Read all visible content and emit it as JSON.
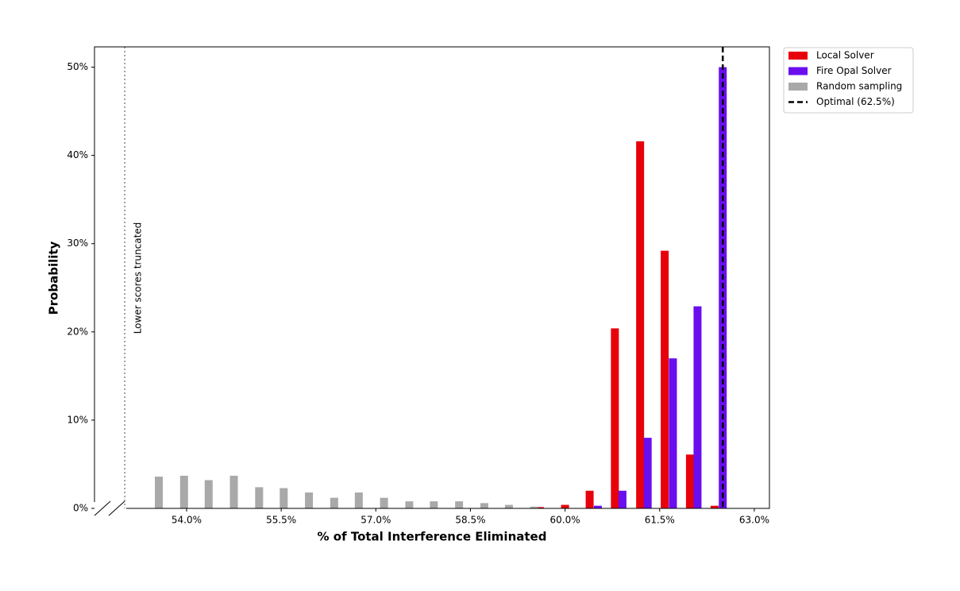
{
  "chart_data": {
    "type": "bar",
    "xlabel": "% of Total Interference Eliminated",
    "ylabel": "Probability",
    "xlim": [
      52.54,
      63.24
    ],
    "ylim": [
      0,
      52.3
    ],
    "xticks": [
      {
        "value": 54.0,
        "label": "54.0%"
      },
      {
        "value": 55.5,
        "label": "55.5%"
      },
      {
        "value": 57.0,
        "label": "57.0%"
      },
      {
        "value": 58.5,
        "label": "58.5%"
      },
      {
        "value": 60.0,
        "label": "60.0%"
      },
      {
        "value": 61.5,
        "label": "61.5%"
      },
      {
        "value": 63.0,
        "label": "63.0%"
      }
    ],
    "yticks": [
      {
        "value": 0,
        "label": "0%"
      },
      {
        "value": 10,
        "label": "10%"
      },
      {
        "value": 20,
        "label": "20%"
      },
      {
        "value": 30,
        "label": "30%"
      },
      {
        "value": 40,
        "label": "40%"
      },
      {
        "value": 50,
        "label": "50%"
      }
    ],
    "series": [
      {
        "name": "Local Solver",
        "color": "#e8000b",
        "x": [
          59.6,
          60.0,
          60.39,
          60.79,
          61.19,
          61.58,
          61.98,
          62.37
        ],
        "values": [
          0.15,
          0.4,
          2.0,
          20.4,
          41.6,
          29.2,
          6.1,
          0.3
        ]
      },
      {
        "name": "Fire Opal Solver",
        "color": "#6a0ef0",
        "x": [
          60.52,
          60.91,
          61.31,
          61.71,
          62.1,
          62.5
        ],
        "values": [
          0.3,
          2.0,
          8.0,
          17.0,
          22.9,
          50.0
        ]
      },
      {
        "name": "Random sampling",
        "color": "#a9a9a9",
        "x": [
          53.56,
          53.96,
          54.35,
          54.75,
          55.15,
          55.54,
          55.94,
          56.34,
          56.73,
          57.13,
          57.53,
          57.92,
          58.32,
          58.72,
          59.11,
          59.51
        ],
        "values": [
          3.6,
          3.7,
          3.2,
          3.7,
          2.4,
          2.3,
          1.8,
          1.2,
          1.8,
          1.2,
          0.8,
          0.8,
          0.8,
          0.6,
          0.4,
          0.2
        ]
      }
    ],
    "reference_line": {
      "x": 62.5,
      "label": "Optimal (62.5%)",
      "color": "#000000"
    },
    "truncation_line": {
      "x": 53.02,
      "label": "Lower scores truncated",
      "color": "#a0a0a0"
    },
    "legend": "upper right outside"
  }
}
